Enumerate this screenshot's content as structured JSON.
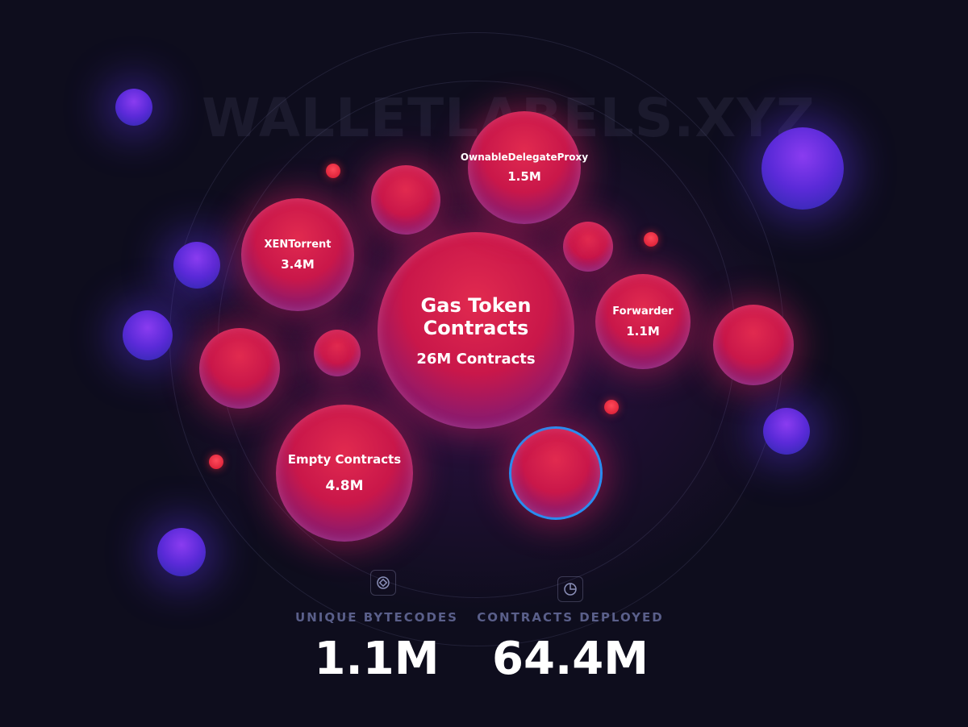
{
  "watermark": "WALLETLABELS.XYZ",
  "bubbles": [
    {
      "label": "Gas Token Contracts",
      "value": "26M Contracts"
    },
    {
      "label": "OwnableDelegateProxy",
      "value": "1.5M"
    },
    {
      "label": "XENTorrent",
      "value": "3.4M"
    },
    {
      "label": "Forwarder",
      "value": "1.1M"
    },
    {
      "label": "Empty Contracts",
      "value": "4.8M"
    }
  ],
  "stats": [
    {
      "label": "UNIQUE BYTECODES",
      "value": "1.1M"
    },
    {
      "label": "CONTRACTS DEPLOYED",
      "value": "64.4M"
    }
  ]
}
